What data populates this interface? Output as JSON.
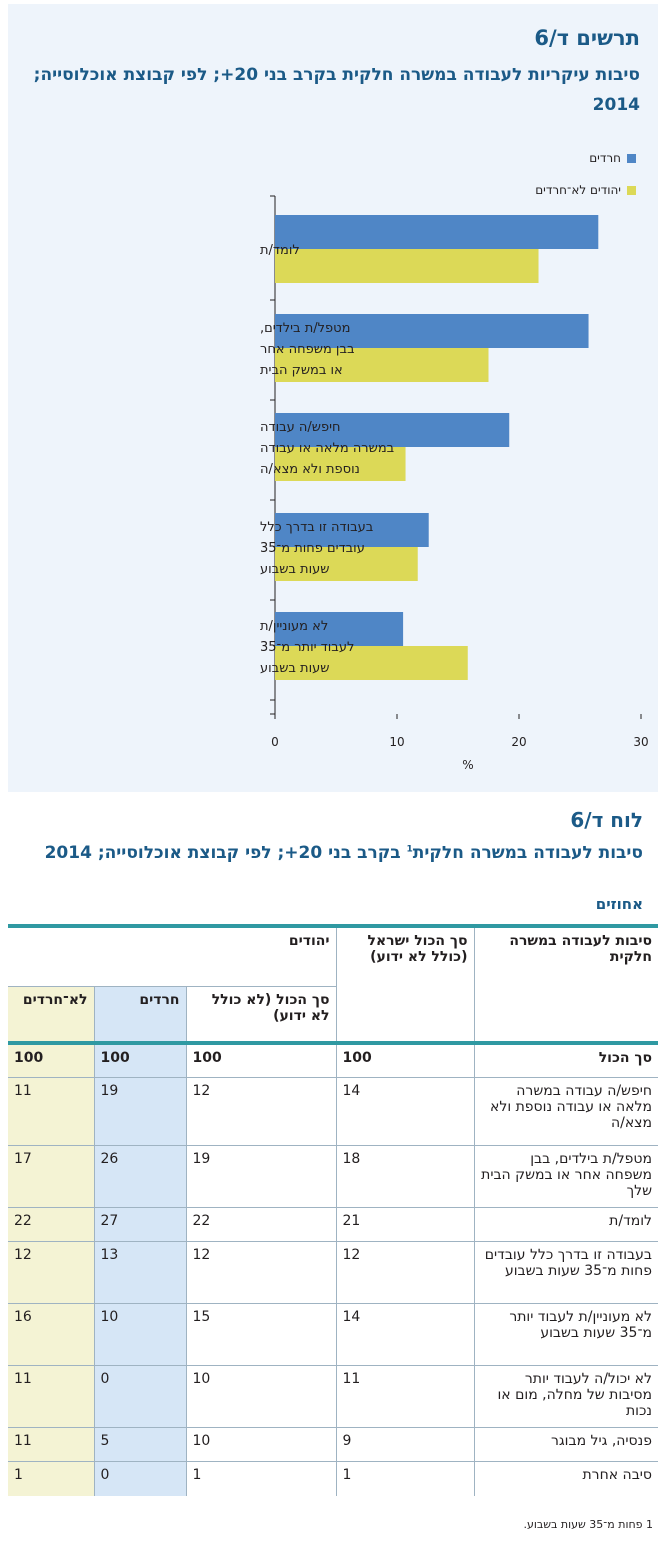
{
  "chart": {
    "number": "תרשים ד/6",
    "title": "סיבות עיקריות לעבודה במשרה חלקית בקרב בני 20+; לפי קבוצת אוכלוסייה; 2014",
    "legend": [
      {
        "label": "חרדים",
        "color": "#4f86c6"
      },
      {
        "label": "יהודים לא־חרדים",
        "color": "#dcd957"
      }
    ],
    "xlabel": "%",
    "x_ticks": [
      "0",
      "10",
      "20",
      "30"
    ]
  },
  "chart_data": {
    "type": "bar",
    "orientation": "horizontal",
    "categories": [
      [
        "לומד/ת"
      ],
      [
        "מטפל/ת בילדים,",
        "בבן משפחה אחר",
        "או במשק הבית"
      ],
      [
        "חיפש/ה עבודה",
        "במשרה מלאה או עבודה",
        "נוספת ולא מצא/ה"
      ],
      [
        "בעבודה זו בדרך כלל",
        "עובדים פחות מ־35",
        "שעות בשבוע"
      ],
      [
        "לא מעוניין/ת",
        "לעבוד יותר מ־35",
        "שעות בשבוע"
      ]
    ],
    "series": [
      {
        "name": "חרדים",
        "values": [
          26.5,
          25.7,
          19.2,
          12.6,
          10.5
        ]
      },
      {
        "name": "יהודים לא־חרדים",
        "values": [
          21.6,
          17.5,
          10.7,
          11.7,
          15.8
        ]
      }
    ],
    "xlabel": "%",
    "xlim": [
      0,
      30
    ],
    "legend_position": "top-right",
    "grid": false
  },
  "table": {
    "number": "לוח ד/6",
    "title_main": "סיבות לעבודה במשרה חלקית",
    "title_sup": "1",
    "title_rest": " בקרב בני 20+; לפי קבוצת אוכלוסייה; 2014",
    "units": "אחוזים",
    "headers": {
      "reason": "סיבות לעבודה במשרה חלקית",
      "total_israel": "סך הכול ישראל (כולל לא ידוע)",
      "jews": "יהודים",
      "jews_total": "סך הכול (לא כולל לא ידוע)",
      "haredim": "חרדים",
      "non_haredim": "לא־חרדים"
    },
    "total_row": {
      "label": "סך הכול",
      "israel": "100",
      "jews": "100",
      "haredim": "100",
      "non_haredim": "100"
    },
    "rows": [
      {
        "label": "חיפש/ה עבודה במשרה מלאה או עבודה נוספת ולא מצא/ה",
        "israel": "14",
        "jews": "12",
        "haredim": "19",
        "non_haredim": "11"
      },
      {
        "label": "מטפל/ת בילדים, בבן משפחה אחר או במשק הבית שלך",
        "israel": "18",
        "jews": "19",
        "haredim": "26",
        "non_haredim": "17"
      },
      {
        "label": "לומד/ת",
        "israel": "21",
        "jews": "22",
        "haredim": "27",
        "non_haredim": "22"
      },
      {
        "label": "בעבודה זו בדרך כלל עובדים פחות מ־35 שעות בשבוע",
        "israel": "12",
        "jews": "12",
        "haredim": "13",
        "non_haredim": "12"
      },
      {
        "label": "לא מעוניין/ת לעבוד יותר מ־35 שעות בשבוע",
        "israel": "14",
        "jews": "15",
        "haredim": "10",
        "non_haredim": "16"
      },
      {
        "label": "לא יכול/ה לעבוד יותר מסיבות של מחלה, מום או נכות",
        "israel": "11",
        "jews": "10",
        "haredim": "0",
        "non_haredim": "11"
      },
      {
        "label": "פנסיה, גיל מבוגר",
        "israel": "9",
        "jews": "10",
        "haredim": "5",
        "non_haredim": "11"
      },
      {
        "label": "סיבה אחרת",
        "israel": "1",
        "jews": "1",
        "haredim": "0",
        "non_haredim": "1"
      }
    ],
    "footnote": "1 פחות מ־35 שעות בשבוע."
  }
}
